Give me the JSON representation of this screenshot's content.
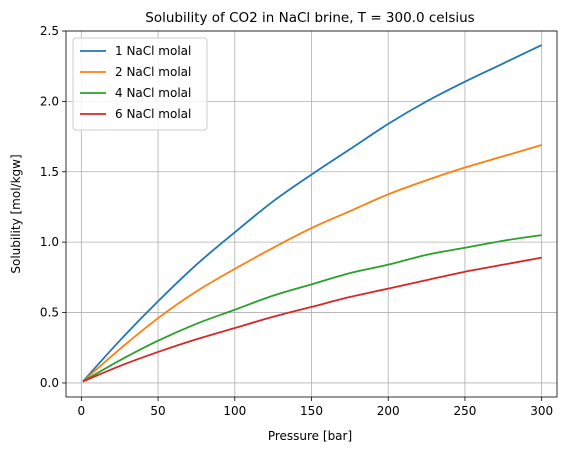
{
  "chart_data": {
    "type": "line",
    "title": "Solubility of CO2 in NaCl brine, T = 300.0 celsius",
    "xlabel": "Pressure [bar]",
    "ylabel": "Solubility [mol/kgw]",
    "xlim": [
      -10,
      310
    ],
    "ylim": [
      -0.1,
      2.5
    ],
    "xticks": [
      0,
      50,
      100,
      150,
      200,
      250,
      300
    ],
    "yticks": [
      0.0,
      0.5,
      1.0,
      1.5,
      2.0,
      2.5
    ],
    "xtick_labels": [
      "0",
      "50",
      "100",
      "150",
      "200",
      "250",
      "300"
    ],
    "ytick_labels": [
      "0.0",
      "0.5",
      "1.0",
      "1.5",
      "2.0",
      "2.5"
    ],
    "grid": true,
    "legend_position": "top-left",
    "x": [
      1,
      25,
      50,
      75,
      100,
      125,
      150,
      175,
      200,
      225,
      250,
      275,
      300
    ],
    "series": [
      {
        "name": "1 NaCl molal",
        "color": "#1f77b4",
        "values": [
          0.01,
          0.3,
          0.58,
          0.84,
          1.07,
          1.29,
          1.48,
          1.66,
          1.84,
          2.0,
          2.14,
          2.27,
          2.4
        ]
      },
      {
        "name": "2 NaCl molal",
        "color": "#ff7f0e",
        "values": [
          0.01,
          0.24,
          0.46,
          0.65,
          0.81,
          0.96,
          1.1,
          1.22,
          1.34,
          1.44,
          1.53,
          1.61,
          1.69
        ]
      },
      {
        "name": "4 NaCl molal",
        "color": "#2ca02c",
        "values": [
          0.01,
          0.16,
          0.3,
          0.42,
          0.52,
          0.62,
          0.7,
          0.78,
          0.84,
          0.91,
          0.96,
          1.01,
          1.05
        ]
      },
      {
        "name": "6 NaCl molal",
        "color": "#d62728",
        "values": [
          0.01,
          0.12,
          0.22,
          0.31,
          0.39,
          0.47,
          0.54,
          0.61,
          0.67,
          0.73,
          0.79,
          0.84,
          0.89
        ]
      }
    ]
  }
}
